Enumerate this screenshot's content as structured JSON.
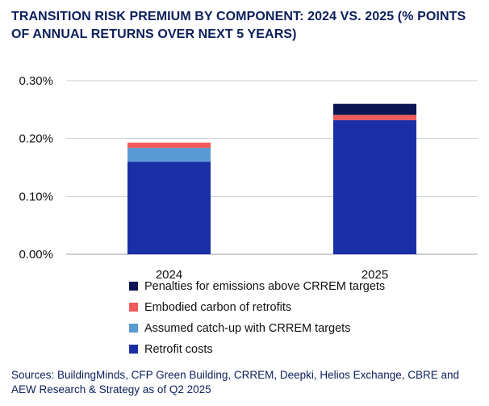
{
  "chart_data": {
    "type": "bar",
    "stacked": true,
    "title": "TRANSITION RISK PREMIUM BY COMPONENT: 2024 VS. 2025 (% POINTS OF ANNUAL RETURNS OVER NEXT 5 YEARS)",
    "categories": [
      "2024",
      "2025"
    ],
    "series": [
      {
        "name": "Retrofit costs",
        "color": "#1a2fa6",
        "values": [
          0.16,
          0.232
        ]
      },
      {
        "name": "Assumed catch-up with CRREM targets",
        "color": "#5b9bd5",
        "values": [
          0.024,
          0.0
        ]
      },
      {
        "name": "Embodied carbon of retrofits",
        "color": "#f05a5a",
        "values": [
          0.009,
          0.009
        ]
      },
      {
        "name": "Penalties for emissions above CRREM targets",
        "color": "#0b1553",
        "values": [
          0.0,
          0.019
        ]
      }
    ],
    "y_ticks": [
      "0.00%",
      "0.10%",
      "0.20%",
      "0.30%"
    ],
    "ylim": [
      0,
      0.3
    ],
    "grid": true,
    "legend_position": "bottom",
    "legend_order": [
      3,
      2,
      1,
      0
    ]
  },
  "source": "Sources: BuildingMinds, CFP Green Building, CRREM, Deepki, Helios Exchange, CBRE and AEW Research & Strategy as of Q2 2025"
}
